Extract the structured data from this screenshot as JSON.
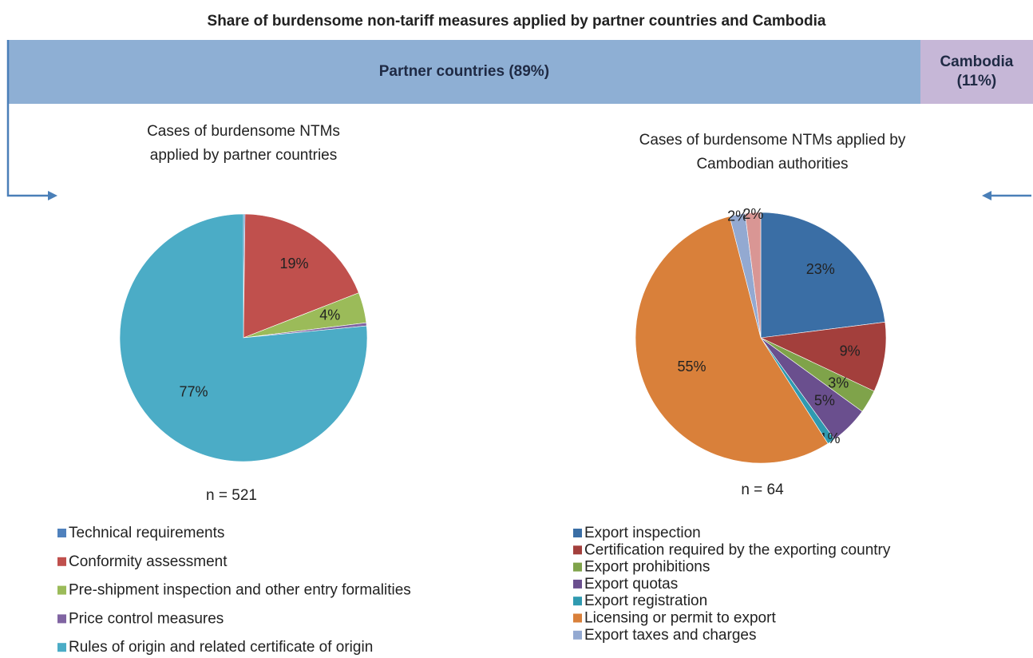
{
  "title": "Share of burdensome non-tariff measures applied by partner countries and Cambodia",
  "chart_data": [
    {
      "type": "share-bar",
      "values": [
        89,
        11
      ],
      "value_labels": [
        "Partner countries (89%)",
        "Cambodia (11%)"
      ],
      "colors": [
        "#8eafd4",
        "#c6b7d7"
      ]
    },
    {
      "type": "pie",
      "title": "Cases of burdensome NTMs applied by partner countries",
      "note": "n = 521",
      "categories": [
        "Technical requirements",
        "Conformity assessment",
        "Pre-shipment inspection and other entry formalities",
        "Price control measures",
        "Rules of origin and related certificate of origin"
      ],
      "values": [
        0.2,
        19,
        4,
        0.4,
        77
      ],
      "value_labels": [
        null,
        "19%",
        "4%",
        null,
        "77%"
      ],
      "colors": [
        "#4f81bd",
        "#c0504d",
        "#9bbb59",
        "#8064a2",
        "#4bacc6"
      ]
    },
    {
      "type": "pie",
      "title": "Cases of burdensome NTMs applied by Cambodian authorities",
      "note": "n = 64",
      "categories": [
        "Export inspection",
        "Certification required by the exporting country",
        "Export prohibitions",
        "Export quotas",
        "Export registration",
        "Licensing or permit to export",
        "Export taxes and charges",
        null
      ],
      "values": [
        23,
        9,
        3,
        5,
        1,
        55,
        2,
        2
      ],
      "value_labels": [
        "23%",
        "9%",
        "3%",
        "5%",
        "1%",
        "55%",
        "2%",
        "2%"
      ],
      "colors": [
        "#3a6ea5",
        "#a33f3c",
        "#7fa34a",
        "#6a4f8e",
        "#2f9ab0",
        "#d9803a",
        "#93a9d1",
        "#d99694"
      ]
    }
  ]
}
